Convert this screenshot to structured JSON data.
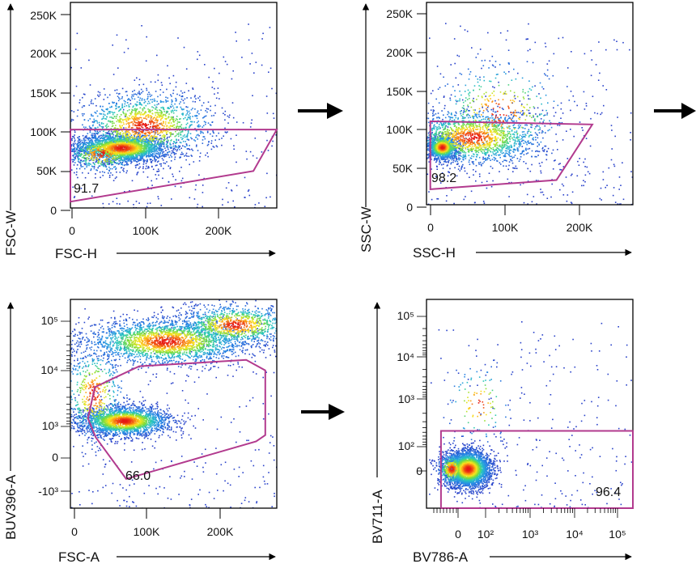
{
  "chart_data": [
    {
      "type": "scatter",
      "id": "p1",
      "plot_style": "flow-cytometry pseudocolor density",
      "xlabel": "FSC-H",
      "ylabel": "FSC-W",
      "x_ticks": [
        "0",
        "100K",
        "200K"
      ],
      "y_ticks": [
        "0",
        "50K",
        "100K",
        "150K",
        "200K",
        "250K"
      ],
      "xlim": [
        0,
        265000
      ],
      "ylim": [
        0,
        262000
      ],
      "gate_value": "91.7",
      "gate_polygon": [
        [
          0,
          8000
        ],
        [
          0,
          100000
        ],
        [
          265000,
          100000
        ],
        [
          235000,
          47000
        ]
      ],
      "populations": [
        {
          "cx": 65000,
          "cy": 77000,
          "sx": 30000,
          "sy": 9000,
          "n": 2300
        },
        {
          "cx": 95000,
          "cy": 105000,
          "sx": 45000,
          "sy": 22000,
          "n": 1500
        },
        {
          "cx": 40000,
          "cy": 70000,
          "sx": 25000,
          "sy": 12000,
          "n": 500
        }
      ]
    },
    {
      "type": "scatter",
      "id": "p2",
      "plot_style": "flow-cytometry pseudocolor density",
      "xlabel": "SSC-H",
      "ylabel": "SSC-W",
      "x_ticks": [
        "0",
        "100K",
        "200K"
      ],
      "y_ticks": [
        "0",
        "50K",
        "100K",
        "150K",
        "200K",
        "250K"
      ],
      "xlim": [
        -5000,
        265000
      ],
      "ylim": [
        0,
        262000
      ],
      "gate_value": "98.2",
      "gate_polygon": [
        [
          0,
          20000
        ],
        [
          0,
          108000
        ],
        [
          212000,
          104000
        ],
        [
          165000,
          32000
        ]
      ],
      "populations": [
        {
          "cx": 15000,
          "cy": 75000,
          "sx": 10000,
          "sy": 8000,
          "n": 1100
        },
        {
          "cx": 55000,
          "cy": 88000,
          "sx": 45000,
          "sy": 18000,
          "n": 1700
        },
        {
          "cx": 90000,
          "cy": 120000,
          "sx": 45000,
          "sy": 35000,
          "n": 400
        }
      ]
    },
    {
      "type": "scatter",
      "id": "p3",
      "plot_style": "flow-cytometry pseudocolor density",
      "xlabel": "FSC-A",
      "ylabel": "BUV396-A",
      "x_ticks": [
        "0",
        "100K",
        "200K"
      ],
      "y_ticks": [
        "-10³",
        "0",
        "10³",
        "10⁴",
        "10⁵"
      ],
      "xlim": [
        -5000,
        265000
      ],
      "y_scale": "biexponential (display position 0-1)",
      "ylim": [
        0,
        1
      ],
      "gate_value": "66.0",
      "gate_polygon": [
        [
          28000,
          0.34
        ],
        [
          18000,
          0.43
        ],
        [
          27000,
          0.58
        ],
        [
          85000,
          0.68
        ],
        [
          225000,
          0.71
        ],
        [
          250000,
          0.66
        ],
        [
          250000,
          0.35
        ],
        [
          238000,
          0.32
        ],
        [
          68000,
          0.14
        ]
      ],
      "populations": [
        {
          "cx": 65000,
          "cy": 0.42,
          "sx": 30000,
          "sy": 0.035,
          "n": 2300
        },
        {
          "cx": 120000,
          "cy": 0.8,
          "sx": 55000,
          "sy": 0.055,
          "n": 2400
        },
        {
          "cx": 210000,
          "cy": 0.88,
          "sx": 40000,
          "sy": 0.05,
          "n": 1100
        },
        {
          "cx": 25000,
          "cy": 0.55,
          "sx": 20000,
          "sy": 0.12,
          "n": 500
        }
      ]
    },
    {
      "type": "scatter",
      "id": "p4",
      "plot_style": "flow-cytometry pseudocolor density",
      "xlabel": "BV786-A",
      "ylabel": "BV711-A",
      "x_ticks": [
        "0",
        "10²",
        "10³",
        "10⁴",
        "10⁵"
      ],
      "y_ticks": [
        "0",
        "10²",
        "10³",
        "10⁴",
        "10⁵"
      ],
      "x_scale": "biexponential (display position 0-1)",
      "y_scale": "biexponential (display position 0-1)",
      "xlim": [
        0,
        1
      ],
      "ylim": [
        0,
        1
      ],
      "gate_value": "96.4",
      "gate_polygon": [
        [
          0.07,
          0.0
        ],
        [
          0.07,
          0.37
        ],
        [
          1.0,
          0.37
        ],
        [
          1.0,
          0.0
        ]
      ],
      "populations": [
        {
          "cx": 0.2,
          "cy": 0.19,
          "sx": 0.055,
          "sy": 0.045,
          "n": 2800
        },
        {
          "cx": 0.12,
          "cy": 0.19,
          "sx": 0.035,
          "sy": 0.04,
          "n": 500
        },
        {
          "cx": 0.25,
          "cy": 0.5,
          "sx": 0.08,
          "sy": 0.1,
          "n": 110
        }
      ]
    }
  ],
  "flow_arrows": 3
}
